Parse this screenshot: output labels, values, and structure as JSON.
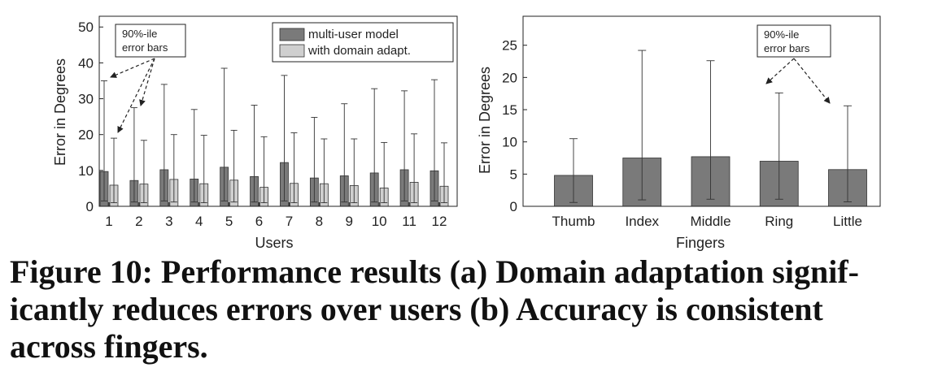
{
  "chart_data": [
    {
      "type": "bar",
      "categories": [
        "1",
        "2",
        "3",
        "4",
        "5",
        "6",
        "7",
        "8",
        "9",
        "10",
        "11",
        "12"
      ],
      "series": [
        {
          "name": "multi-user model",
          "values": [
            9.7,
            7.2,
            10.2,
            7.6,
            10.9,
            8.3,
            12.2,
            7.9,
            8.5,
            9.3,
            10.2,
            9.9
          ],
          "error_low": [
            1.5,
            1.2,
            1.5,
            1.2,
            1.5,
            1.2,
            1.5,
            1.2,
            1.2,
            1.2,
            1.5,
            1.5
          ],
          "error_high": [
            35.0,
            27.5,
            34.0,
            27.0,
            38.5,
            28.2,
            36.5,
            24.8,
            28.6,
            32.8,
            32.2,
            35.3
          ],
          "color": "#7a7a7a"
        },
        {
          "name": "with domain adapt.",
          "values": [
            5.9,
            6.2,
            7.5,
            6.3,
            7.3,
            5.3,
            6.4,
            6.3,
            5.8,
            5.1,
            6.7,
            5.6
          ],
          "error_low": [
            1.0,
            1.0,
            1.2,
            1.0,
            1.2,
            1.0,
            1.0,
            1.0,
            1.0,
            1.0,
            1.0,
            1.0
          ],
          "error_high": [
            19.0,
            18.4,
            20.0,
            19.8,
            21.2,
            19.4,
            20.5,
            18.8,
            18.8,
            17.8,
            20.2,
            17.7
          ],
          "color": "#cfcfcf"
        }
      ],
      "xlabel": "Users",
      "ylabel": "Error in Degrees",
      "ylim": [
        0,
        53
      ],
      "yticks": [
        0,
        10,
        20,
        30,
        40,
        50
      ],
      "legend_position": "top-right",
      "annotation": [
        "90%-ile",
        "error bars"
      ]
    },
    {
      "type": "bar",
      "categories": [
        "Thumb",
        "Index",
        "Middle",
        "Ring",
        "Little"
      ],
      "series": [
        {
          "values": [
            4.8,
            7.5,
            7.7,
            7.0,
            5.7
          ],
          "error_low": [
            0.6,
            1.0,
            1.1,
            1.1,
            0.7
          ],
          "error_high": [
            10.5,
            24.2,
            22.6,
            17.6,
            15.6
          ],
          "color": "#7a7a7a"
        }
      ],
      "xlabel": "Fingers",
      "ylabel": "Error in Degrees",
      "ylim": [
        0,
        29.5
      ],
      "yticks": [
        0,
        5,
        10,
        15,
        20,
        25
      ],
      "annotation": [
        "90%-ile",
        "error bars"
      ]
    }
  ],
  "caption": [
    "Figure 10: Performance results (a) Domain adaptation signif-",
    "icantly reduces errors over users (b) Accuracy is consistent",
    "across fingers."
  ]
}
